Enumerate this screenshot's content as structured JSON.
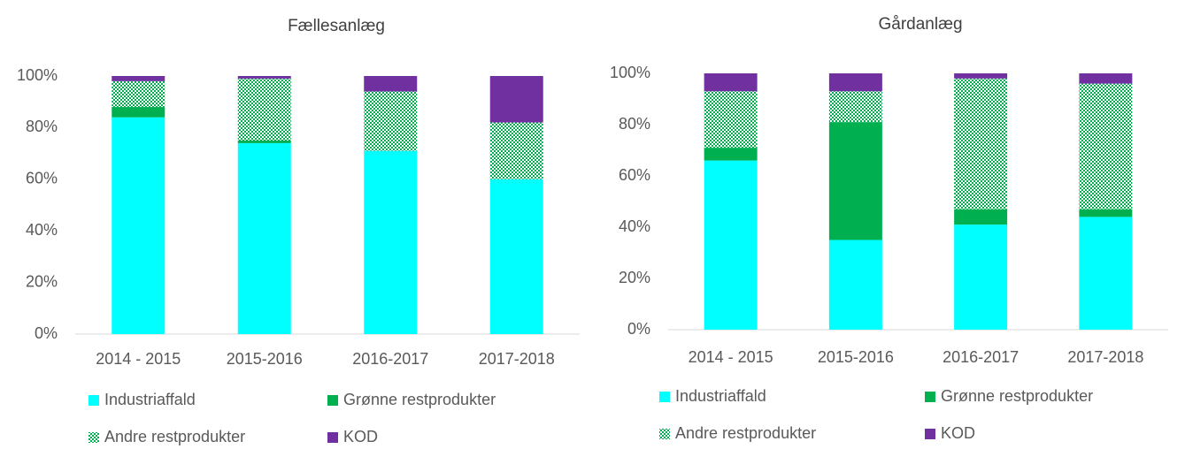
{
  "chart_data": [
    {
      "type": "stacked_bar",
      "title": "Fællesanlæg",
      "categories": [
        "2014 - 2015",
        "2015-2016",
        "2016-2017",
        "2017-2018"
      ],
      "series": [
        {
          "name": "Industriaffald",
          "color": "#00ffff",
          "values": [
            84,
            74,
            71,
            60
          ]
        },
        {
          "name": "Grønne restprodukter",
          "color": "#00b050",
          "values": [
            4,
            1,
            0,
            0
          ]
        },
        {
          "name": "Andre restprodukter",
          "color": "#00b050",
          "pattern": "dots",
          "values": [
            10,
            24,
            23,
            22
          ]
        },
        {
          "name": "KOD",
          "color": "#7030a0",
          "values": [
            2,
            1,
            6,
            18
          ]
        }
      ],
      "ylim": [
        0,
        100
      ],
      "yticks": [
        {
          "value": 0,
          "label": "0%"
        },
        {
          "value": 20,
          "label": "20%"
        },
        {
          "value": 40,
          "label": "40%"
        },
        {
          "value": 60,
          "label": "60%"
        },
        {
          "value": 80,
          "label": "80%"
        },
        {
          "value": 100,
          "label": "100%"
        }
      ],
      "legend": "bottom"
    },
    {
      "type": "stacked_bar",
      "title": "Gårdanlæg",
      "categories": [
        "2014 - 2015",
        "2015-2016",
        "2016-2017",
        "2017-2018"
      ],
      "series": [
        {
          "name": "Industriaffald",
          "color": "#00ffff",
          "values": [
            66,
            35,
            41,
            44
          ]
        },
        {
          "name": "Grønne restprodukter",
          "color": "#00b050",
          "values": [
            5,
            46,
            6,
            3
          ]
        },
        {
          "name": "Andre restprodukter",
          "color": "#00b050",
          "pattern": "dots",
          "values": [
            22,
            12,
            51,
            49
          ]
        },
        {
          "name": "KOD",
          "color": "#7030a0",
          "values": [
            7,
            7,
            2,
            4
          ]
        }
      ],
      "ylim": [
        0,
        100
      ],
      "yticks": [
        {
          "value": 0,
          "label": "0%"
        },
        {
          "value": 20,
          "label": "20%"
        },
        {
          "value": 40,
          "label": "40%"
        },
        {
          "value": 60,
          "label": "60%"
        },
        {
          "value": 80,
          "label": "80%"
        },
        {
          "value": 100,
          "label": "100%"
        }
      ],
      "legend": "bottom"
    }
  ]
}
